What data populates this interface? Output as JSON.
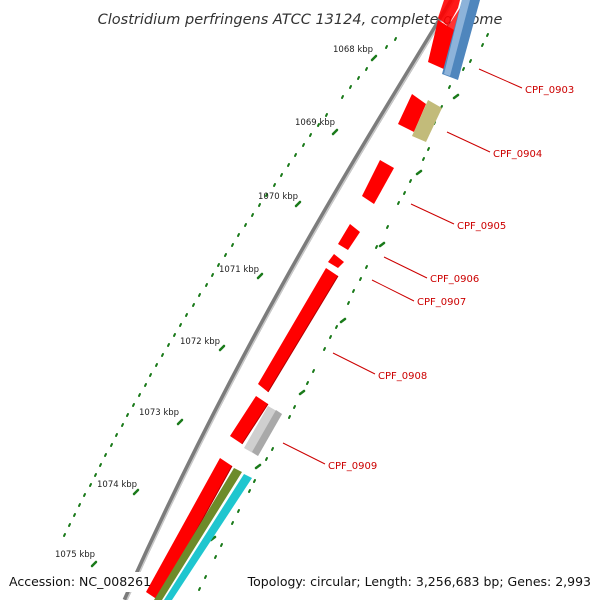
{
  "title": "Clostridium perfringens ATCC 13124, complete genome",
  "ticks": [
    "1068 kbp",
    "1069 kbp",
    "1070 kbp",
    "1071 kbp",
    "1072 kbp",
    "1073 kbp",
    "1074 kbp",
    "1075 kbp"
  ],
  "genes": [
    "CPF_0903",
    "CPF_0904",
    "CPF_0905",
    "CPF_0906",
    "CPF_0907",
    "CPF_0908",
    "CPF_0909"
  ],
  "footer": {
    "accession": "Accession: NC_008261",
    "summary": "Topology: circular; Length: 3,256,683 bp; Genes: 2,993"
  },
  "colors": {
    "cds": "#ff0000",
    "grey_feature": "#cfcfcf",
    "blue_feature": "#4f86bd",
    "olive_feature": "#c2bb7a",
    "green_feature": "#6d8b2a",
    "cyan_feature": "#1fc6cf",
    "backbone": "#8a8a8a",
    "tick": "#1a7a1a",
    "label": "#cc0000"
  }
}
